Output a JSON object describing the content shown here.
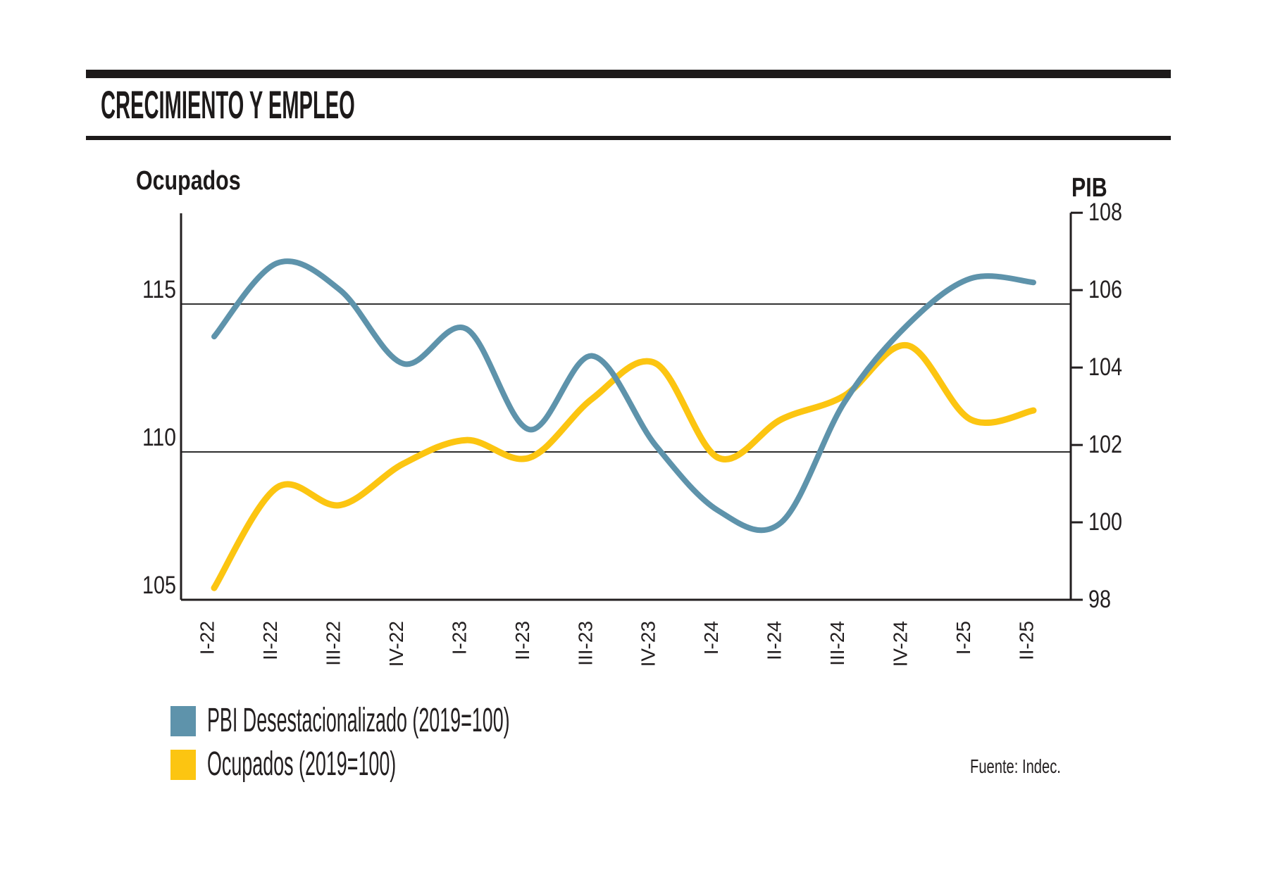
{
  "header": {
    "title": "CRECIMIENTO Y EMPLEO"
  },
  "source": "Fuente: Indec.",
  "chart_data": {
    "type": "line",
    "categories": [
      "I-22",
      "II-22",
      "III-22",
      "IV-22",
      "I-23",
      "II-23",
      "III-23",
      "IV-23",
      "I-24",
      "II-24",
      "III-24",
      "IV-24",
      "I-25",
      "II-25"
    ],
    "series": [
      {
        "name": "PBI Desestacionalizado (2019=100)",
        "axis": "right",
        "color": "#5e93ab",
        "stroke_width": 8,
        "values": [
          104.8,
          106.7,
          106.0,
          104.1,
          105.0,
          102.4,
          104.3,
          102.0,
          100.3,
          100.0,
          103.1,
          105.1,
          106.3,
          106.2
        ]
      },
      {
        "name": "Ocupados (2019=100)",
        "axis": "left",
        "color": "#fcc511",
        "stroke_width": 9,
        "values": [
          105.4,
          108.8,
          108.2,
          109.6,
          110.4,
          109.8,
          111.8,
          113.0,
          109.8,
          111.1,
          111.9,
          113.6,
          111.1,
          111.4
        ]
      }
    ],
    "left_axis": {
      "title": "Ocupados",
      "min": 105,
      "max": 118.14,
      "ticks": [
        105,
        110,
        115
      ]
    },
    "right_axis": {
      "title": "PIB",
      "min": 98,
      "max": 108.04,
      "ticks": [
        98,
        100,
        102,
        104,
        106,
        108
      ]
    },
    "gridlines_left_values": [
      110,
      115
    ],
    "grid": "horizontal-only",
    "legend_position": "bottom-left",
    "xlabel": "",
    "ylabel_left": "Ocupados",
    "ylabel_right": "PIB"
  }
}
